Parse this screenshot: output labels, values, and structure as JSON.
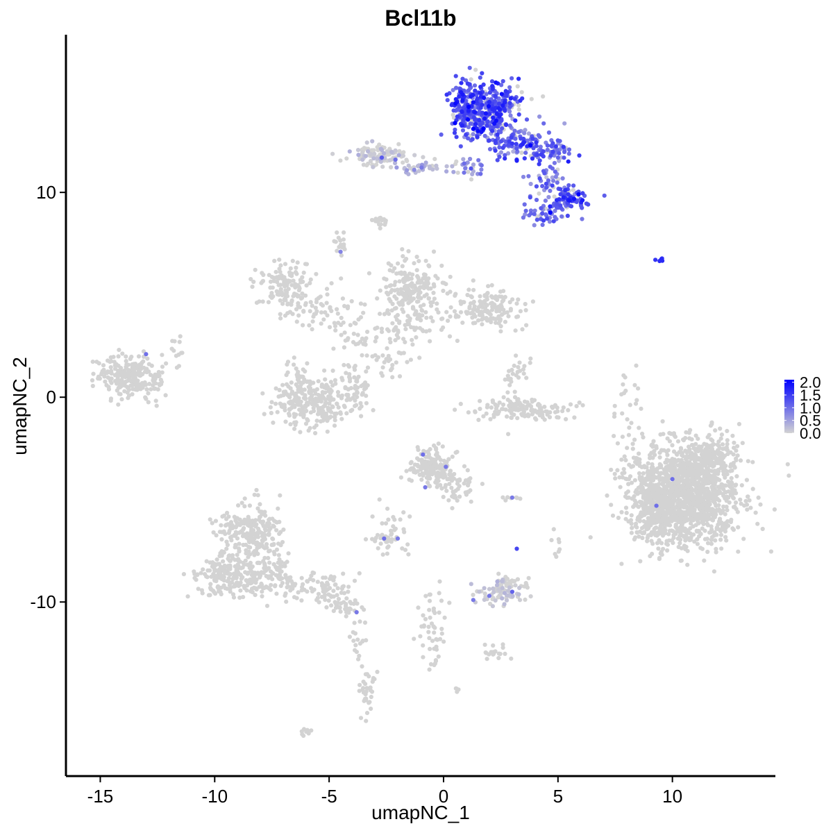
{
  "chart_data": {
    "type": "scatter",
    "title": "Bcl11b",
    "xlabel": "umapNC_1",
    "ylabel": "umapNC_2",
    "xlim": [
      -16.5,
      14.5
    ],
    "ylim": [
      -18.5,
      17.7
    ],
    "x_ticks": [
      -15,
      -10,
      -5,
      0,
      5,
      10
    ],
    "x_tick_labels": [
      "-15",
      "-10",
      "-5",
      "0",
      "5",
      "10"
    ],
    "y_ticks": [
      10,
      0,
      -10
    ],
    "y_tick_labels": [
      "10",
      "0",
      "-10"
    ],
    "grid": false,
    "legend_position": "right",
    "color_scale": {
      "low_color": "#d3d3d3",
      "high_color": "#0000ff",
      "min": 0,
      "max": 2.1,
      "tick_labels": [
        "2.0",
        "1.5",
        "1.0",
        "0.5",
        "0.0"
      ],
      "ticks": [
        2.0,
        1.5,
        1.0,
        0.5,
        0.0
      ]
    },
    "clusters": [
      {
        "x": 1.0,
        "y": 14.2,
        "sx": 0.4,
        "sy": 0.6,
        "n": 180,
        "expr": 1.3,
        "expr_sd": 0.35
      },
      {
        "x": 2.3,
        "y": 14.4,
        "sx": 0.6,
        "sy": 0.5,
        "n": 160,
        "expr": 1.25,
        "expr_sd": 0.35
      },
      {
        "x": 1.7,
        "y": 13.4,
        "sx": 0.6,
        "sy": 0.5,
        "n": 110,
        "expr": 1.15,
        "expr_sd": 0.35
      },
      {
        "x": 3.3,
        "y": 12.5,
        "sx": 0.8,
        "sy": 0.5,
        "n": 120,
        "expr": 1.1,
        "expr_sd": 0.35
      },
      {
        "x": 4.7,
        "y": 12.0,
        "sx": 0.5,
        "sy": 0.35,
        "n": 60,
        "expr": 1.05,
        "expr_sd": 0.35
      },
      {
        "x": 5.5,
        "y": 9.6,
        "sx": 0.4,
        "sy": 0.3,
        "n": 80,
        "expr": 1.35,
        "expr_sd": 0.3
      },
      {
        "x": 4.5,
        "y": 10.5,
        "sx": 0.4,
        "sy": 0.4,
        "n": 40,
        "expr": 0.95,
        "expr_sd": 0.3
      },
      {
        "x": 4.4,
        "y": 9.0,
        "sx": 0.5,
        "sy": 0.3,
        "n": 40,
        "expr": 1.0,
        "expr_sd": 0.3
      },
      {
        "x": 1.1,
        "y": 11.2,
        "sx": 0.3,
        "sy": 0.3,
        "n": 25,
        "expr": 0.7,
        "expr_sd": 0.3
      },
      {
        "x": -1.0,
        "y": 11.2,
        "sx": 0.6,
        "sy": 0.12,
        "n": 35,
        "expr": 0.3,
        "expr_sd": 0.3
      },
      {
        "x": -2.7,
        "y": 11.8,
        "sx": 0.7,
        "sy": 0.3,
        "n": 110,
        "expr": 0.05,
        "expr_sd": 0.15
      },
      {
        "x": -2.7,
        "y": 8.6,
        "sx": 0.2,
        "sy": 0.12,
        "n": 15,
        "expr": 0,
        "expr_sd": 0
      },
      {
        "x": -4.5,
        "y": 7.3,
        "sx": 0.15,
        "sy": 0.3,
        "n": 15,
        "expr": 0,
        "expr_sd": 0
      },
      {
        "x": 9.5,
        "y": 6.7,
        "sx": 0.12,
        "sy": 0.05,
        "n": 5,
        "expr": 1.6,
        "expr_sd": 0.1
      },
      {
        "x": -7.0,
        "y": 5.6,
        "sx": 0.6,
        "sy": 0.6,
        "n": 110,
        "expr": 0,
        "expr_sd": 0
      },
      {
        "x": -5.5,
        "y": 4.4,
        "sx": 0.9,
        "sy": 0.5,
        "n": 70,
        "expr": 0,
        "expr_sd": 0
      },
      {
        "x": -1.3,
        "y": 5.5,
        "sx": 0.7,
        "sy": 0.6,
        "n": 160,
        "expr": 0,
        "expr_sd": 0
      },
      {
        "x": -1.3,
        "y": 4.0,
        "sx": 0.7,
        "sy": 0.6,
        "n": 90,
        "expr": 0,
        "expr_sd": 0
      },
      {
        "x": 1.8,
        "y": 4.3,
        "sx": 0.7,
        "sy": 0.5,
        "n": 150,
        "expr": 0,
        "expr_sd": 0
      },
      {
        "x": -3.5,
        "y": 3.0,
        "sx": 0.7,
        "sy": 0.6,
        "n": 40,
        "expr": 0,
        "expr_sd": 0
      },
      {
        "x": -2.3,
        "y": 1.5,
        "sx": 0.5,
        "sy": 0.6,
        "n": 30,
        "expr": 0,
        "expr_sd": 0
      },
      {
        "x": -13.8,
        "y": 1.0,
        "sx": 0.6,
        "sy": 0.5,
        "n": 220,
        "expr": 0,
        "expr_sd": 0,
        "sparse": 0.004
      },
      {
        "x": -12.6,
        "y": 0.6,
        "sx": 0.3,
        "sy": 0.5,
        "n": 30,
        "expr": 0,
        "expr_sd": 0
      },
      {
        "x": -11.7,
        "y": 2.1,
        "sx": 0.3,
        "sy": 0.5,
        "n": 12,
        "expr": 0,
        "expr_sd": 0
      },
      {
        "x": -5.6,
        "y": -0.3,
        "sx": 0.9,
        "sy": 0.6,
        "n": 260,
        "expr": 0,
        "expr_sd": 0
      },
      {
        "x": -6.4,
        "y": 0.8,
        "sx": 0.3,
        "sy": 0.5,
        "n": 40,
        "expr": 0,
        "expr_sd": 0
      },
      {
        "x": -3.8,
        "y": 0.8,
        "sx": 0.3,
        "sy": 0.6,
        "n": 40,
        "expr": 0,
        "expr_sd": 0
      },
      {
        "x": 3.4,
        "y": -0.6,
        "sx": 1.0,
        "sy": 0.25,
        "n": 140,
        "expr": 0,
        "expr_sd": 0
      },
      {
        "x": 3.2,
        "y": 0.8,
        "sx": 0.3,
        "sy": 0.5,
        "n": 30,
        "expr": 0,
        "expr_sd": 0
      },
      {
        "x": 8.0,
        "y": 0.0,
        "sx": 0.3,
        "sy": 0.7,
        "n": 20,
        "expr": 0,
        "expr_sd": 0
      },
      {
        "x": -0.5,
        "y": -3.4,
        "sx": 0.45,
        "sy": 0.45,
        "n": 170,
        "expr": 0,
        "expr_sd": 0,
        "sparse": 0.03
      },
      {
        "x": 0.7,
        "y": -4.5,
        "sx": 0.5,
        "sy": 0.5,
        "n": 45,
        "expr": 0,
        "expr_sd": 0
      },
      {
        "x": -2.3,
        "y": -6.5,
        "sx": 0.4,
        "sy": 0.6,
        "n": 30,
        "expr": 0,
        "expr_sd": 0
      },
      {
        "x": -2.6,
        "y": -6.9,
        "sx": 0.3,
        "sy": 0.1,
        "n": 25,
        "expr": 0,
        "expr_sd": 0,
        "sparse": 0.1
      },
      {
        "x": 10.5,
        "y": -4.8,
        "sx": 1.2,
        "sy": 1.2,
        "n": 1400,
        "expr": 0,
        "expr_sd": 0,
        "sparse": 0.001
      },
      {
        "x": 9.2,
        "y": -5.7,
        "sx": 0.5,
        "sy": 0.5,
        "n": 150,
        "expr": 0,
        "expr_sd": 0
      },
      {
        "x": 11.5,
        "y": -3.0,
        "sx": 0.6,
        "sy": 0.5,
        "n": 200,
        "expr": 0,
        "expr_sd": 0
      },
      {
        "x": -8.5,
        "y": -6.5,
        "sx": 0.7,
        "sy": 0.7,
        "n": 220,
        "expr": 0,
        "expr_sd": 0
      },
      {
        "x": -9.3,
        "y": -8.7,
        "sx": 0.8,
        "sy": 0.5,
        "n": 200,
        "expr": 0,
        "expr_sd": 0
      },
      {
        "x": -7.6,
        "y": -8.6,
        "sx": 0.5,
        "sy": 0.6,
        "n": 100,
        "expr": 0,
        "expr_sd": 0
      },
      {
        "x": -5.4,
        "y": -9.3,
        "sx": 0.7,
        "sy": 0.35,
        "n": 80,
        "expr": 0,
        "expr_sd": 0
      },
      {
        "x": -4.3,
        "y": -10.2,
        "sx": 0.4,
        "sy": 0.2,
        "n": 30,
        "expr": 0,
        "expr_sd": 0,
        "sparse": 0.05
      },
      {
        "x": -3.7,
        "y": -11.8,
        "sx": 0.2,
        "sy": 0.6,
        "n": 18,
        "expr": 0,
        "expr_sd": 0
      },
      {
        "x": -3.4,
        "y": -14.6,
        "sx": 0.2,
        "sy": 0.6,
        "n": 35,
        "expr": 0,
        "expr_sd": 0
      },
      {
        "x": 2.5,
        "y": -9.6,
        "sx": 0.5,
        "sy": 0.3,
        "n": 70,
        "expr": 0.05,
        "expr_sd": 0.15
      },
      {
        "x": 2.9,
        "y": -9.0,
        "sx": 0.4,
        "sy": 0.15,
        "n": 25,
        "expr": 0,
        "expr_sd": 0
      },
      {
        "x": -0.5,
        "y": -11.4,
        "sx": 0.3,
        "sy": 1.0,
        "n": 50,
        "expr": 0,
        "expr_sd": 0
      },
      {
        "x": 2.3,
        "y": -12.5,
        "sx": 0.3,
        "sy": 0.15,
        "n": 18,
        "expr": 0,
        "expr_sd": 0
      },
      {
        "x": 3.0,
        "y": -4.9,
        "sx": 0.3,
        "sy": 0.07,
        "n": 8,
        "expr": 0,
        "expr_sd": 0
      },
      {
        "x": 5.0,
        "y": -7.2,
        "sx": 0.12,
        "sy": 0.3,
        "n": 8,
        "expr": 0,
        "expr_sd": 0
      },
      {
        "x": -6.0,
        "y": -16.3,
        "sx": 0.15,
        "sy": 0.1,
        "n": 8,
        "expr": 0,
        "expr_sd": 0
      },
      {
        "x": 0.6,
        "y": -14.3,
        "sx": 0.1,
        "sy": 0.05,
        "n": 4,
        "expr": 0,
        "expr_sd": 0
      },
      {
        "x": 7.7,
        "y": -2.0,
        "sx": 0.1,
        "sy": 0.1,
        "n": 3,
        "expr": 0,
        "expr_sd": 0
      }
    ],
    "highlighted_points": [
      {
        "x": -13.0,
        "y": 2.1,
        "value": 1.0
      },
      {
        "x": -0.9,
        "y": -2.8,
        "value": 1.0
      },
      {
        "x": -0.8,
        "y": -4.4,
        "value": 0.9
      },
      {
        "x": 0.1,
        "y": -3.4,
        "value": 0.9
      },
      {
        "x": -2.6,
        "y": -6.9,
        "value": 1.0
      },
      {
        "x": -2.0,
        "y": -6.9,
        "value": 0.9
      },
      {
        "x": 3.2,
        "y": -7.4,
        "value": 1.4
      },
      {
        "x": 3.0,
        "y": -4.9,
        "value": 0.9
      },
      {
        "x": 9.3,
        "y": -5.3,
        "value": 1.0
      },
      {
        "x": 10.0,
        "y": -4.0,
        "value": 1.0
      },
      {
        "x": -3.8,
        "y": -10.5,
        "value": 0.9
      },
      {
        "x": 3.0,
        "y": -9.5,
        "value": 1.1
      },
      {
        "x": 2.0,
        "y": -9.7,
        "value": 0.9
      },
      {
        "x": 1.3,
        "y": -9.9,
        "value": 0.9
      },
      {
        "x": -4.5,
        "y": 7.1,
        "value": 0.8
      },
      {
        "x": -2.7,
        "y": 11.7,
        "value": 1.2
      },
      {
        "x": -2.1,
        "y": 11.6,
        "value": 1.0
      },
      {
        "x": 1.3,
        "y": 13.1,
        "value": 2.1
      },
      {
        "x": 3.8,
        "y": 12.3,
        "value": 2.1
      },
      {
        "x": 2.3,
        "y": 13.5,
        "value": 2.0
      }
    ]
  }
}
